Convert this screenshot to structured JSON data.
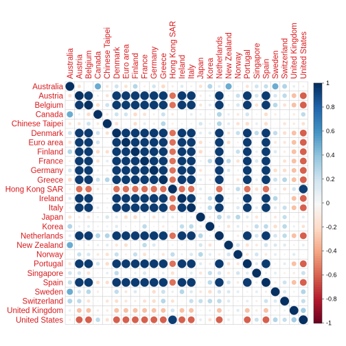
{
  "chart_data": {
    "type": "heatmap",
    "title": "",
    "variables": [
      "Australia",
      "Austria",
      "Belgium",
      "Canada",
      "Chinese Taipei",
      "Denmark",
      "Euro area",
      "Finland",
      "France",
      "Germany",
      "Greece",
      "Hong Kong SAR",
      "Ireland",
      "Italy",
      "Japan",
      "Korea",
      "Netherlands",
      "New Zealand",
      "Norway",
      "Portugal",
      "Singapore",
      "Spain",
      "Sweden",
      "Switzerland",
      "United Kingdom",
      "United States"
    ],
    "color_scale": {
      "min": -1,
      "max": 1,
      "ticks": [
        "1",
        "0.8",
        "0.6",
        "0.4",
        "0.2",
        "0",
        "-0.2",
        "-0.4",
        "-0.6",
        "-0.8",
        "-1"
      ],
      "low_color": "#67001f",
      "mid_color": "#f7f7f7",
      "high_color": "#053061"
    },
    "label_color": "#d7191c",
    "grid": true,
    "legend": "right",
    "groups": {
      "euro": [
        1,
        2,
        5,
        6,
        7,
        8,
        9,
        10,
        12,
        13,
        16,
        19,
        21
      ],
      "australia_sim": {
        "3": 0.5,
        "15": 0.3,
        "17": 0.5,
        "22": 0.5,
        "23": 0.3
      }
    }
  }
}
